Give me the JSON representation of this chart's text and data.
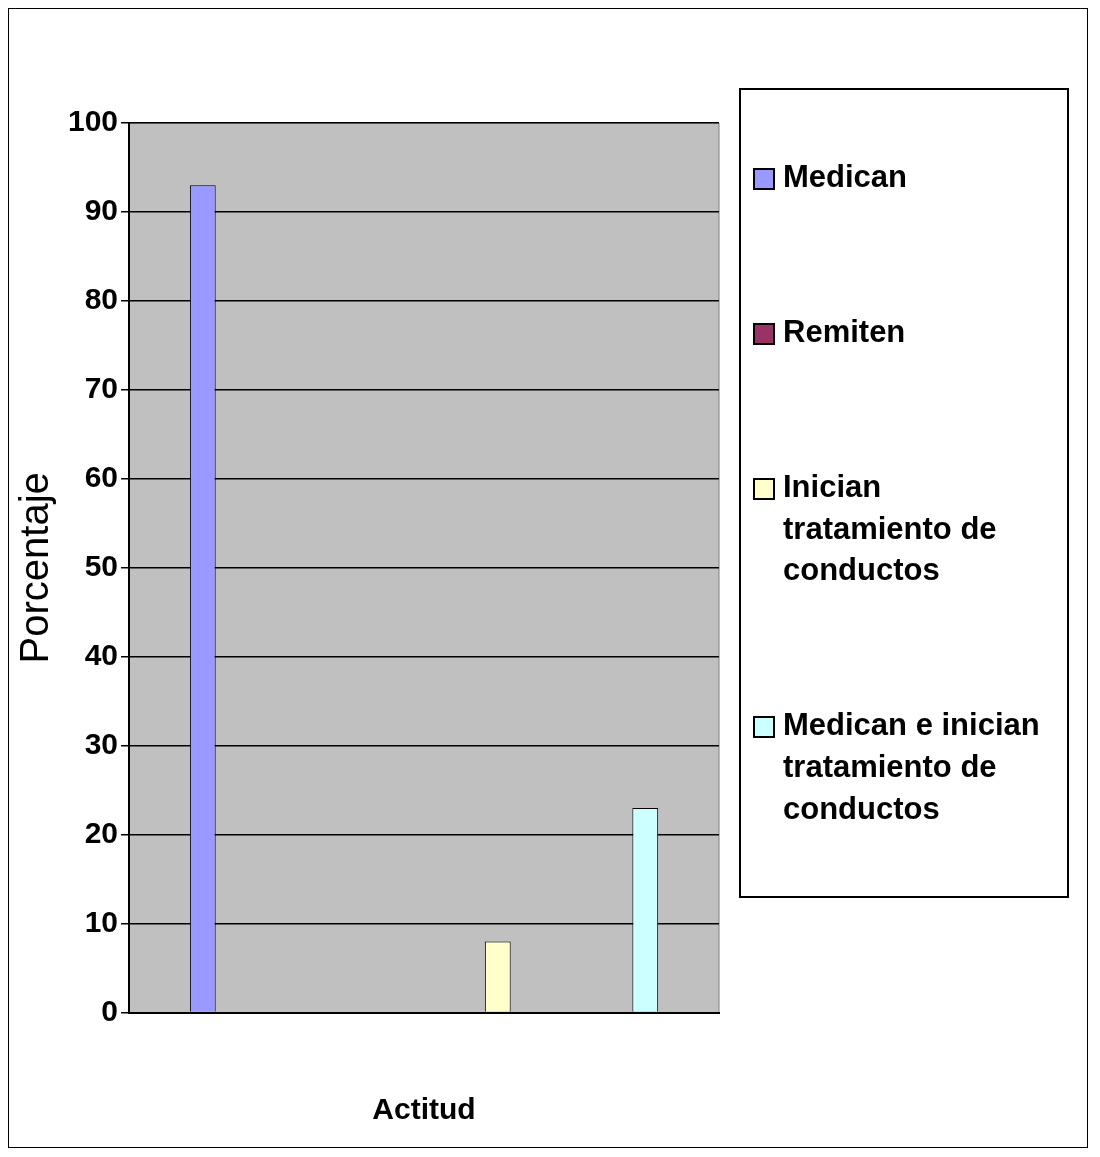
{
  "chart_data": {
    "type": "bar",
    "xlabel": "Actitud",
    "ylabel": "Porcentaje",
    "categories": [
      null,
      null,
      null,
      null
    ],
    "series": [
      {
        "name": "Medican",
        "color": "#9999ff",
        "values": [
          93,
          null,
          null,
          null
        ]
      },
      {
        "name": "Remiten",
        "color": "#993366",
        "values": [
          null,
          0,
          null,
          null
        ]
      },
      {
        "name": "Inician tratamiento de conductos",
        "color": "#ffffcc",
        "values": [
          null,
          null,
          8,
          null
        ]
      },
      {
        "name": "Medican e inician tratamiento de conductos",
        "color": "#ccffff",
        "values": [
          null,
          null,
          null,
          23
        ]
      }
    ],
    "ylim": [
      0,
      100
    ],
    "yticks": [
      0,
      10,
      20,
      30,
      40,
      50,
      60,
      70,
      80,
      90,
      100
    ],
    "grid": "y",
    "legend": "right"
  }
}
